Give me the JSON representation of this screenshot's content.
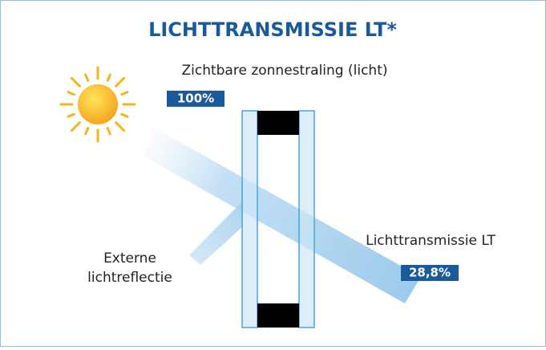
{
  "title": "LICHTTRANSMISSIE LT*",
  "incoming": {
    "label": "Zichtbare zonnestraling (licht)",
    "value": "100%"
  },
  "reflection": {
    "lines": [
      "Externe",
      "lichtreflectie"
    ]
  },
  "transmission": {
    "label": "Lichttransmissie LT",
    "value": "28,8%"
  }
}
